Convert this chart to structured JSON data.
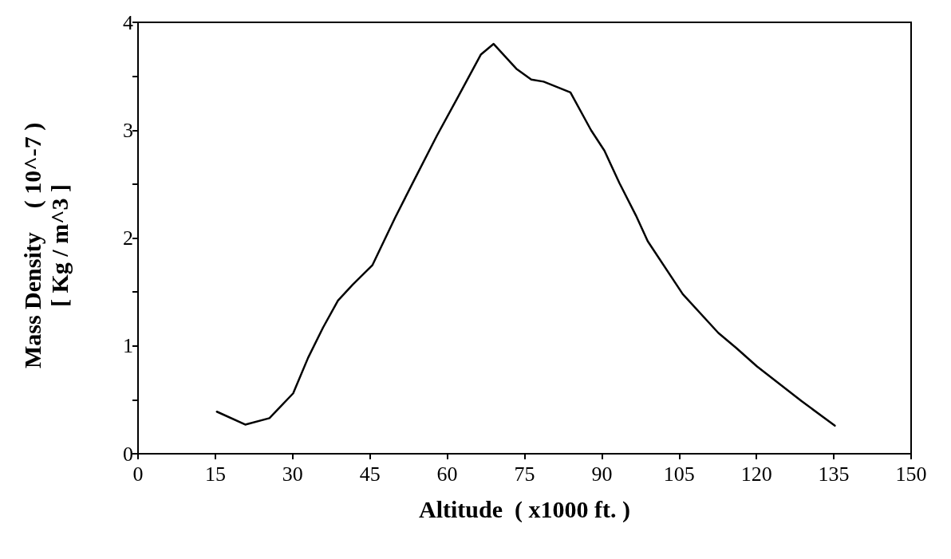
{
  "chart_data": {
    "type": "line",
    "xlabel": "Altitude  ( x1000 ft. )",
    "ylabel": "Mass Density    ( 10^-7 )\n[ Kg / m^3 ]",
    "x": [
      15.3,
      20.8,
      25.5,
      30.1,
      33,
      35.9,
      38.8,
      41.7,
      45.5,
      49.9,
      53.4,
      58,
      62.1,
      66.5,
      69,
      73.4,
      76.3,
      78.7,
      83.9,
      87.9,
      90.5,
      93.4,
      96.6,
      98.9,
      105.7,
      112.6,
      116.1,
      120.1,
      128.7,
      135.2
    ],
    "series": [
      {
        "color": "#000000",
        "values": [
          0.39,
          0.27,
          0.33,
          0.56,
          0.89,
          1.17,
          1.42,
          1.57,
          1.75,
          2.19,
          2.52,
          2.95,
          3.31,
          3.7,
          3.8,
          3.57,
          3.47,
          3.45,
          3.35,
          3.0,
          2.81,
          2.51,
          2.21,
          1.97,
          1.48,
          1.12,
          0.98,
          0.81,
          0.49,
          0.26
        ]
      }
    ],
    "xlim": [
      0,
      150
    ],
    "xticks": [
      0,
      15,
      30,
      45,
      60,
      75,
      90,
      105,
      120,
      135,
      150
    ],
    "ylim": [
      0,
      4
    ],
    "yticks": [
      0,
      {
        "value": 0.5,
        "label": null
      },
      1,
      {
        "value": 1.5,
        "label": null
      },
      2,
      {
        "value": 2.5,
        "label": null
      },
      3,
      {
        "value": 3.5,
        "label": null
      },
      4
    ],
    "grid": false,
    "legend": false,
    "marker": "none",
    "line_style": "solid"
  }
}
